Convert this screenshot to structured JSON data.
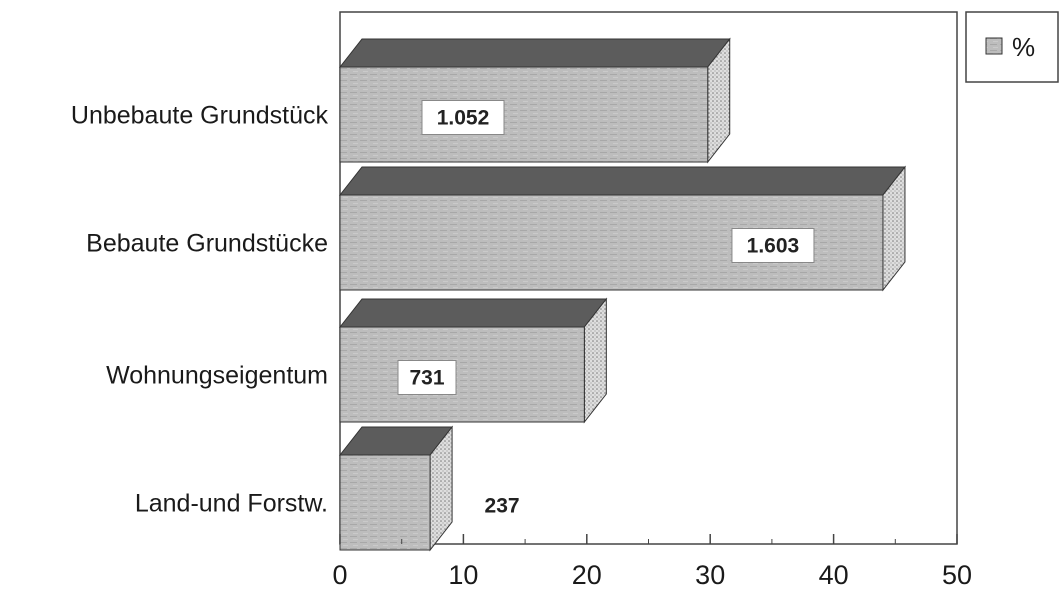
{
  "chart_data": {
    "type": "bar",
    "orientation": "horizontal",
    "style": "3d",
    "categories": [
      "Unbebaute Grundstück",
      "Bebaute Grundstücke",
      "Wohnungseigentum",
      "Land-und Forstw."
    ],
    "series": [
      {
        "name": "%",
        "values": [
          29.8,
          44.0,
          19.8,
          7.3
        ],
        "data_labels": [
          "1.052",
          "1.603",
          "731",
          "237"
        ]
      }
    ],
    "xlim": [
      0,
      50
    ],
    "xticks": [
      "0",
      "10",
      "20",
      "30",
      "40",
      "50"
    ],
    "grid": false,
    "legend_position": "top-right",
    "colors": {
      "bar_front": "#bcbcbc",
      "bar_top": "#5c5c5c",
      "bar_side": "#d6d6d6"
    }
  }
}
